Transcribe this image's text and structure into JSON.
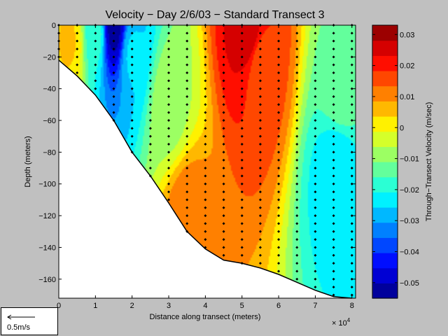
{
  "chart_data": {
    "type": "heatmap",
    "title": "Velocity − Day 2/6/03 − Standard Transect 3",
    "xlabel": "Distance along transect (meters)",
    "ylabel": "Depth (meters)",
    "x_multiplier": "× 10",
    "x_multiplier_exp": "4",
    "xlim": [
      0,
      81000
    ],
    "ylim": [
      -172,
      0
    ],
    "x_ticks": [
      0,
      1,
      2,
      3,
      4,
      5,
      6,
      7,
      8
    ],
    "y_ticks": [
      0,
      -20,
      -40,
      -60,
      -80,
      -100,
      -120,
      -140,
      -160
    ],
    "x_tick_labels": [
      "0",
      "1",
      "2",
      "3",
      "4",
      "5",
      "6",
      "7",
      "8"
    ],
    "y_tick_labels": [
      "0",
      "−20",
      "−40",
      "−60",
      "−80",
      "−100",
      "−120",
      "−140",
      "−160"
    ],
    "colorbar": {
      "label": "Through−Transect Velocity (m/sec)",
      "range": [
        -0.055,
        0.033
      ],
      "ticks": [
        0.03,
        0.02,
        0.01,
        0,
        -0.01,
        -0.02,
        -0.03,
        -0.04,
        -0.05
      ],
      "tick_labels": [
        "0.03",
        "0.02",
        "0.01",
        "0",
        "−0.01",
        "−0.02",
        "−0.03",
        "−0.04",
        "−0.05"
      ],
      "levels": 18
    },
    "bottom_profile": [
      [
        0,
        -22
      ],
      [
        5000,
        -32
      ],
      [
        10000,
        -44
      ],
      [
        15000,
        -60
      ],
      [
        20000,
        -80
      ],
      [
        25000,
        -95
      ],
      [
        30000,
        -112
      ],
      [
        35000,
        -130
      ],
      [
        40000,
        -141
      ],
      [
        45000,
        -148
      ],
      [
        50000,
        -150
      ],
      [
        55000,
        -153
      ],
      [
        60000,
        -157
      ],
      [
        65000,
        -162
      ],
      [
        70000,
        -167
      ],
      [
        75000,
        -171
      ],
      [
        80000,
        -172
      ]
    ],
    "velocity_features": [
      {
        "x": 15000,
        "y": -3,
        "value": -0.052
      },
      {
        "x": 20000,
        "y": -18,
        "value": -0.025
      },
      {
        "x": 10000,
        "y": -5,
        "value": -0.018
      },
      {
        "x": 52000,
        "y": -4,
        "value": 0.027
      },
      {
        "x": 55000,
        "y": -25,
        "value": 0.015
      },
      {
        "x": 76000,
        "y": -90,
        "value": -0.025
      },
      {
        "x": 77000,
        "y": -40,
        "value": -0.012
      },
      {
        "x": 35000,
        "y": -122,
        "value": 0.012
      },
      {
        "x": 3000,
        "y": -10,
        "value": 0.004
      },
      {
        "x": 30000,
        "y": -50,
        "value": -0.008
      }
    ],
    "stations_x": [
      0,
      5000,
      10000,
      15000,
      20000,
      25000,
      30000,
      35000,
      40000,
      45000,
      50000,
      55000,
      60000,
      65000,
      70000,
      75000,
      80000
    ],
    "sample_depth_step": 5,
    "grid": false
  },
  "legend": {
    "scale_label": "0.5m/s"
  }
}
